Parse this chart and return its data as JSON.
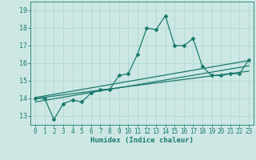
{
  "title": "",
  "xlabel": "Humidex (Indice chaleur)",
  "background_color": "#cde8e4",
  "grid_color": "#b0d8d0",
  "line_color": "#1a7a6e",
  "xlim": [
    -0.5,
    23.5
  ],
  "ylim": [
    12.5,
    19.5
  ],
  "x_ticks": [
    0,
    1,
    2,
    3,
    4,
    5,
    6,
    7,
    8,
    9,
    10,
    11,
    12,
    13,
    14,
    15,
    16,
    17,
    18,
    19,
    20,
    21,
    22,
    23
  ],
  "y_ticks": [
    13,
    14,
    15,
    16,
    17,
    18,
    19
  ],
  "main_line_x": [
    0,
    1,
    2,
    3,
    4,
    5,
    6,
    7,
    8,
    9,
    10,
    11,
    12,
    13,
    14,
    15,
    16,
    17,
    18,
    19,
    20,
    21,
    22,
    23
  ],
  "main_line_y": [
    14.0,
    14.0,
    12.8,
    13.7,
    13.9,
    13.8,
    14.3,
    14.5,
    14.5,
    15.3,
    15.4,
    16.5,
    18.0,
    17.9,
    18.7,
    17.0,
    17.0,
    17.4,
    15.8,
    15.3,
    15.3,
    15.4,
    15.4,
    16.2
  ],
  "reg_line1_x": [
    0,
    23
  ],
  "reg_line1_y": [
    13.8,
    15.85
  ],
  "reg_line2_x": [
    0,
    23
  ],
  "reg_line2_y": [
    14.05,
    16.15
  ],
  "reg_line3_x": [
    0,
    23
  ],
  "reg_line3_y": [
    14.0,
    15.55
  ]
}
